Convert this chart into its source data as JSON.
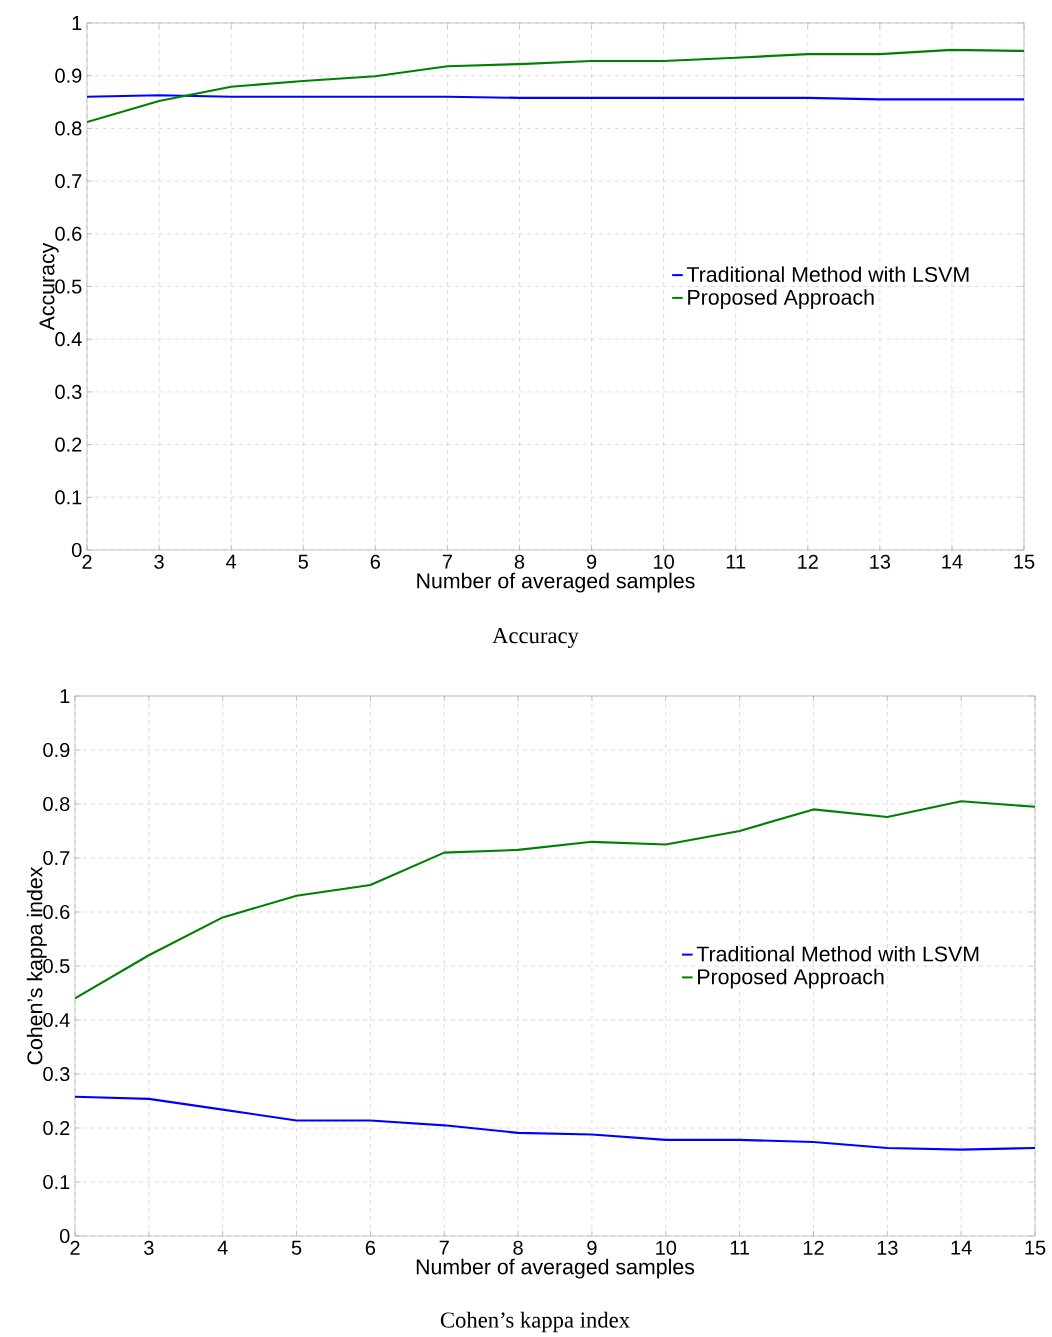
{
  "chart_data": [
    {
      "type": "line",
      "xlabel": "Number of averaged samples",
      "ylabel": "Accuracy",
      "annotations": [
        "Accuracy"
      ],
      "x": [
        2,
        3,
        4,
        5,
        6,
        7,
        8,
        9,
        10,
        11,
        12,
        13,
        14,
        15
      ],
      "series": [
        {
          "name": "Traditional Method with LSVM",
          "color": "#0000ff",
          "values": [
            0.86,
            0.863,
            0.86,
            0.86,
            0.86,
            0.86,
            0.858,
            0.858,
            0.858,
            0.858,
            0.858,
            0.855,
            0.855,
            0.855
          ]
        },
        {
          "name": "Proposed Approach",
          "color": "#008000",
          "values": [
            0.812,
            0.852,
            0.879,
            0.89,
            0.899,
            0.918,
            0.922,
            0.928,
            0.928,
            0.934,
            0.941,
            0.941,
            0.949,
            0.947
          ]
        }
      ],
      "xlim": [
        2,
        15
      ],
      "ylim": [
        0,
        1
      ],
      "xticks": [
        2,
        3,
        4,
        5,
        6,
        7,
        8,
        9,
        10,
        11,
        12,
        13,
        14,
        15
      ],
      "yticks": [
        0,
        0.1,
        0.2,
        0.3,
        0.4,
        0.5,
        0.6,
        0.7,
        0.8,
        0.9,
        1
      ],
      "grid": true,
      "legend": "right",
      "marker": "none",
      "line_style": "solid"
    },
    {
      "type": "line",
      "xlabel": "Number of averaged samples",
      "ylabel": "Cohen’s kappa index",
      "annotations": [
        "Cohen’s kappa index"
      ],
      "x": [
        2,
        3,
        4,
        5,
        6,
        7,
        8,
        9,
        10,
        11,
        12,
        13,
        14,
        15
      ],
      "series": [
        {
          "name": "Traditional Method with LSVM",
          "color": "#0000ff",
          "values": [
            0.258,
            0.254,
            0.234,
            0.214,
            0.214,
            0.205,
            0.191,
            0.188,
            0.178,
            0.178,
            0.174,
            0.163,
            0.16,
            0.163
          ]
        },
        {
          "name": "Proposed Approach",
          "color": "#008000",
          "values": [
            0.44,
            0.52,
            0.59,
            0.63,
            0.65,
            0.71,
            0.715,
            0.73,
            0.725,
            0.75,
            0.79,
            0.776,
            0.805,
            0.795
          ]
        }
      ],
      "xlim": [
        2,
        15
      ],
      "ylim": [
        0,
        1
      ],
      "xticks": [
        2,
        3,
        4,
        5,
        6,
        7,
        8,
        9,
        10,
        11,
        12,
        13,
        14,
        15
      ],
      "yticks": [
        0,
        0.1,
        0.2,
        0.3,
        0.4,
        0.5,
        0.6,
        0.7,
        0.8,
        0.9,
        1
      ],
      "grid": true,
      "legend": "right",
      "marker": "none",
      "line_style": "solid"
    }
  ]
}
